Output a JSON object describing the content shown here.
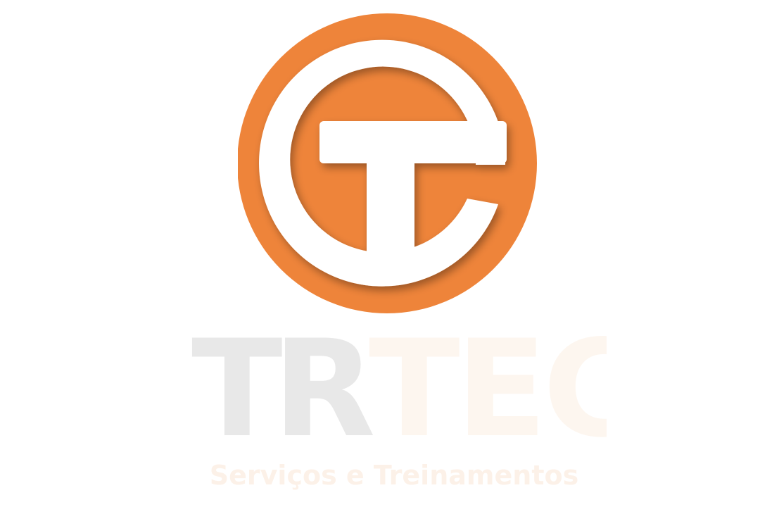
{
  "brand": {
    "name_part_1": "TR",
    "name_part_2": "TEC",
    "tagline": "Serviços e Treinamentos"
  },
  "colors": {
    "accent_orange": "#EE843A",
    "emblem_white": "#FFFFFF",
    "gray_letters": "#E8E8E8",
    "faint_letters": "#FDF6EF",
    "tagline_color": "#FCF1E8"
  },
  "icons": {
    "emblem": "orange-circle-te-monogram-icon"
  }
}
